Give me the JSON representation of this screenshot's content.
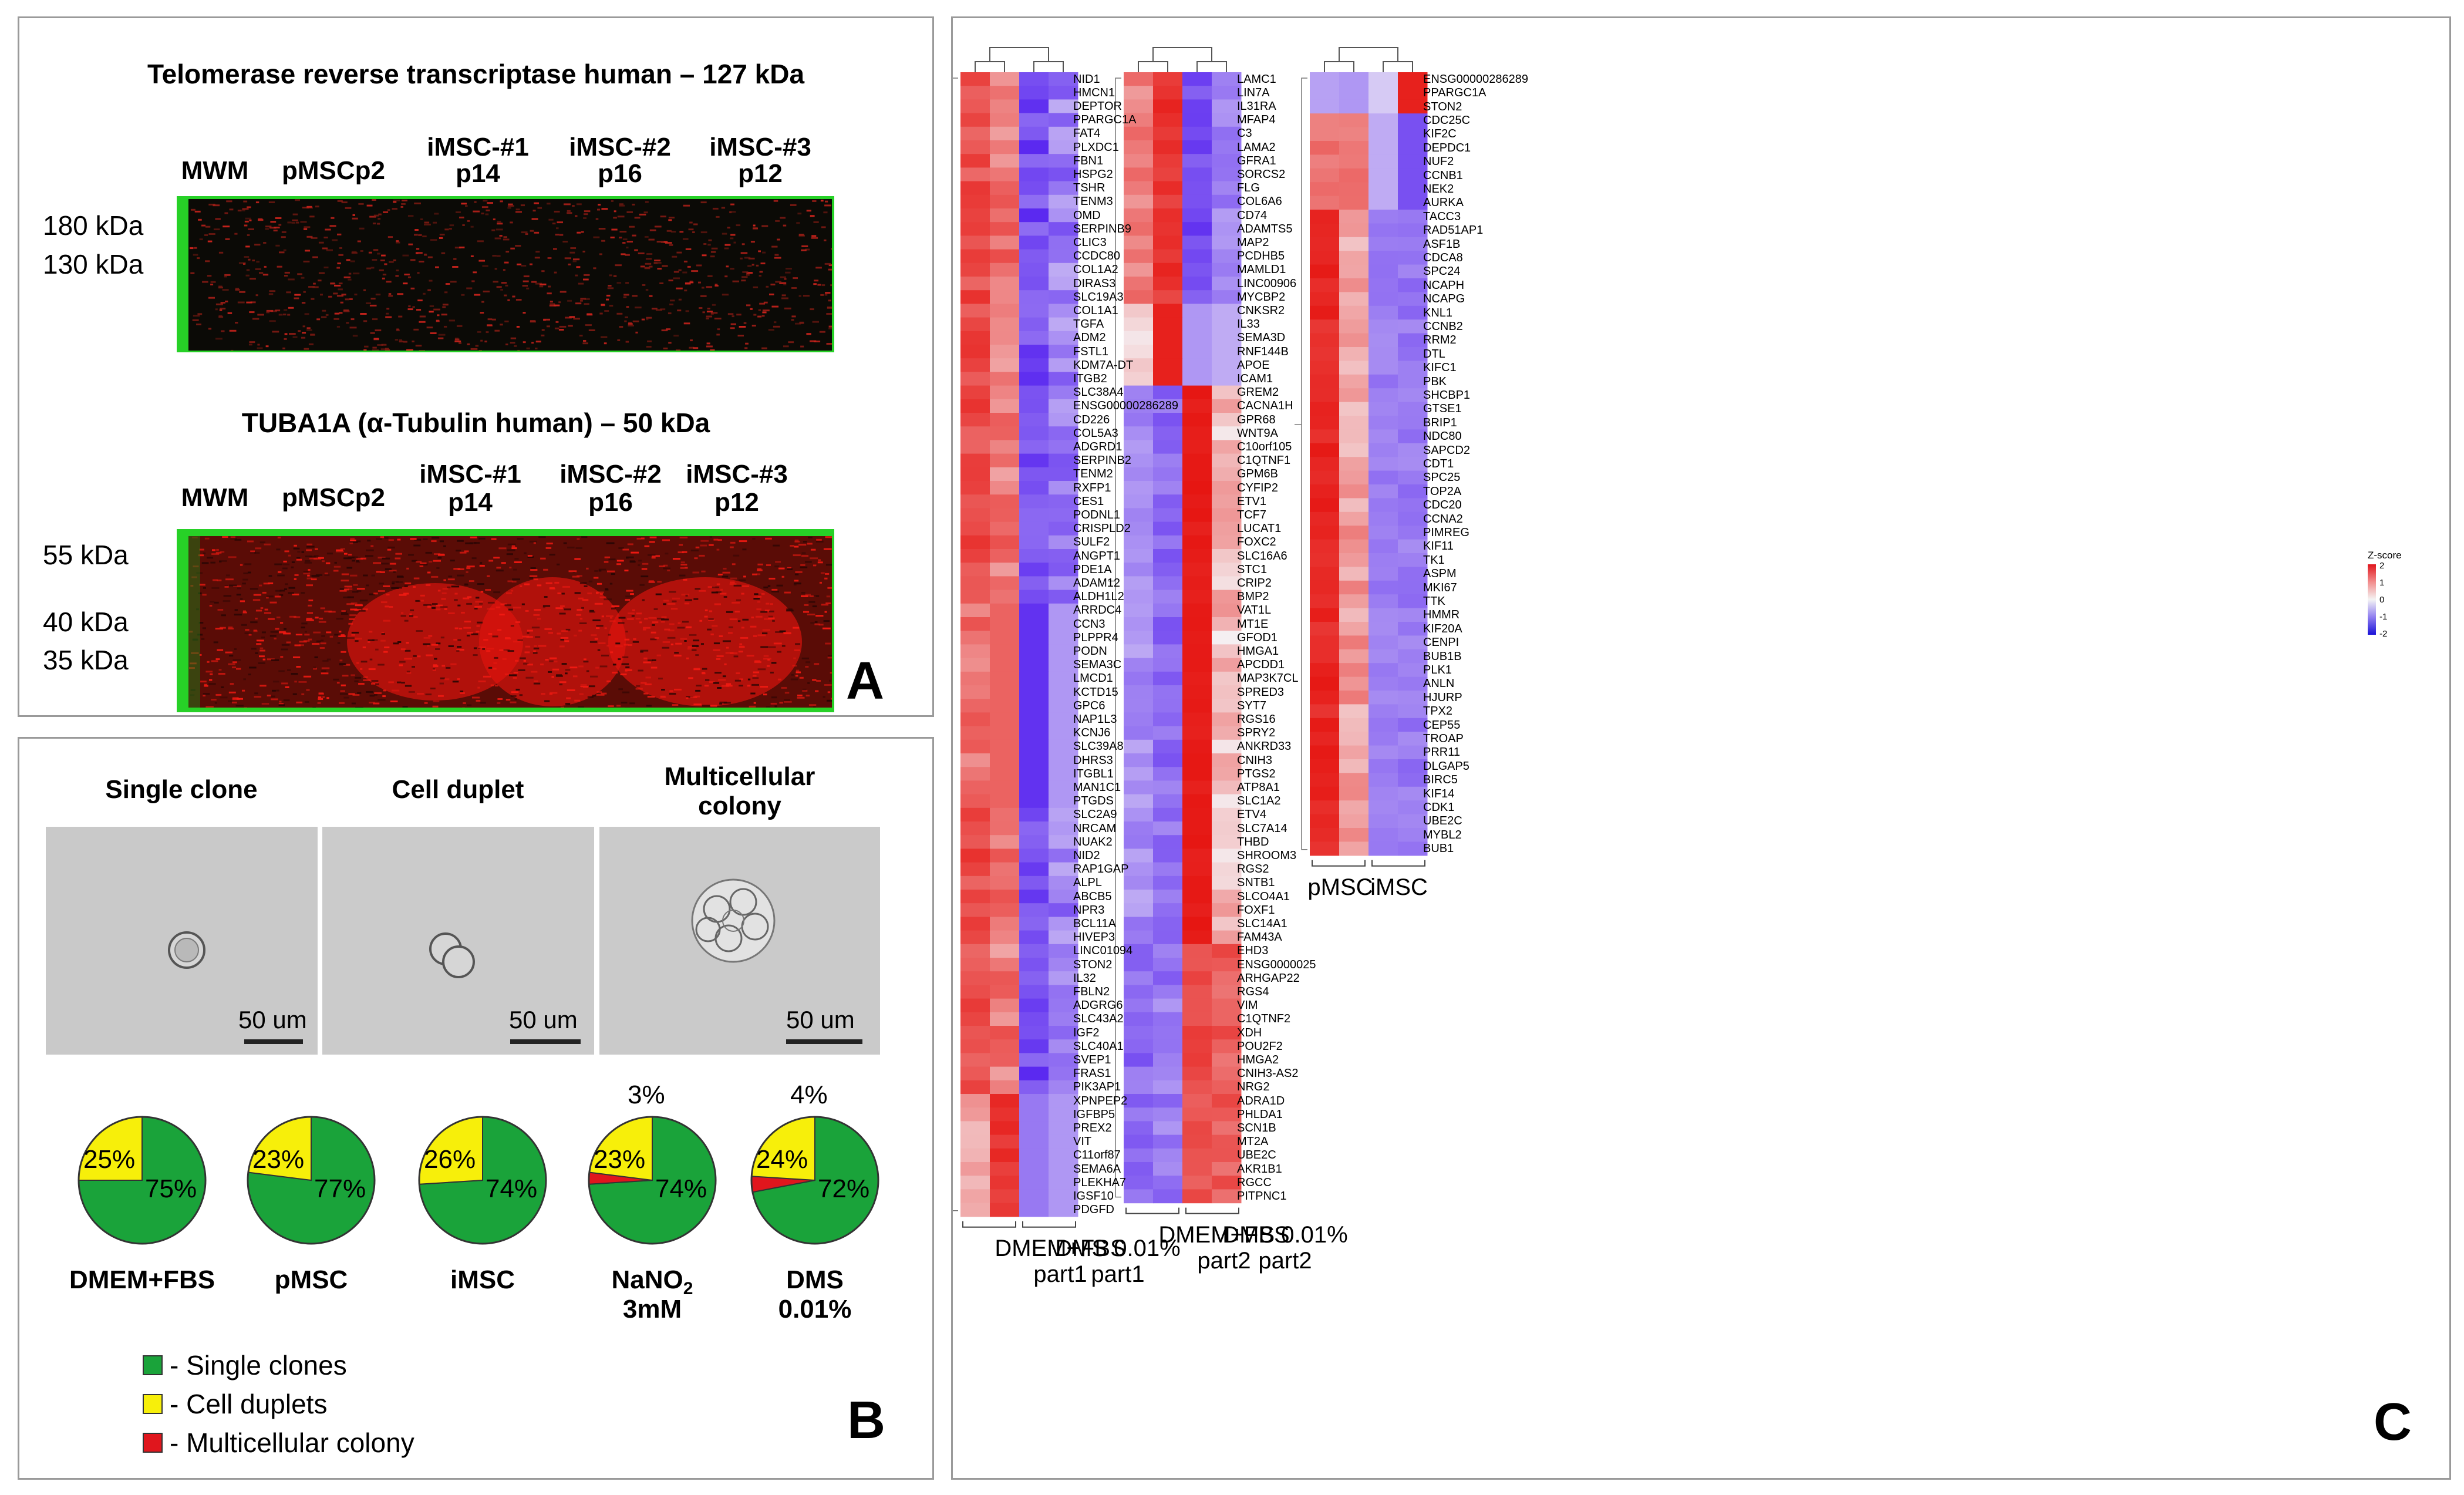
{
  "panel_a": {
    "letter": "A",
    "blot1": {
      "title": "Telomerase reverse transcriptase human – 127 kDa",
      "lanes": [
        {
          "name": "MWM",
          "passage": ""
        },
        {
          "name": "pMSCp2",
          "passage": ""
        },
        {
          "name": "iMSC-#1",
          "passage": "p14"
        },
        {
          "name": "iMSC-#2",
          "passage": "p16"
        },
        {
          "name": "iMSC-#3",
          "passage": "p12"
        }
      ],
      "markers": [
        "180 kDa",
        "130 kDa"
      ]
    },
    "blot2": {
      "title": "TUBA1A (α-Tubulin human) – 50 kDa",
      "lanes": [
        {
          "name": "MWM",
          "passage": ""
        },
        {
          "name": "pMSCp2",
          "passage": ""
        },
        {
          "name": "iMSC-#1",
          "passage": "p14"
        },
        {
          "name": "iMSC-#2",
          "passage": "p16"
        },
        {
          "name": "iMSC-#3",
          "passage": "p12"
        }
      ],
      "markers": [
        "55 kDa",
        "40 kDa",
        "35 kDa"
      ]
    }
  },
  "panel_b": {
    "letter": "B",
    "micrographs": [
      {
        "title": "Single clone",
        "scale": "50 um"
      },
      {
        "title": "Cell duplet",
        "scale": "50 um"
      },
      {
        "title": "Multicellular colony",
        "scale": "50 um"
      }
    ],
    "pies": [
      {
        "label": "DMEM+FBS",
        "sub": "",
        "single": 75,
        "duplet": 25,
        "multi": 0,
        "single_label": "75%",
        "duplet_label": "25%",
        "multi_label": ""
      },
      {
        "label": "pMSC",
        "sub": "",
        "single": 77,
        "duplet": 23,
        "multi": 0,
        "single_label": "77%",
        "duplet_label": "23%",
        "multi_label": ""
      },
      {
        "label": "iMSC",
        "sub": "",
        "single": 74,
        "duplet": 26,
        "multi": 0,
        "single_label": "74%",
        "duplet_label": "26%",
        "multi_label": ""
      },
      {
        "label": "NaNO",
        "sub": "2",
        "line2": "3mM",
        "single": 74,
        "duplet": 23,
        "multi": 3,
        "single_label": "74%",
        "duplet_label": "23%",
        "multi_label": "3%"
      },
      {
        "label": "DMS",
        "sub": "",
        "line2": "0.01%",
        "single": 72,
        "duplet": 24,
        "multi": 4,
        "single_label": "72%",
        "duplet_label": "24%",
        "multi_label": "4%"
      }
    ],
    "legend": [
      {
        "label": "- Single clones",
        "color": "#1aa33a"
      },
      {
        "label": "- Cell duplets",
        "color": "#f7ef0a"
      },
      {
        "label": "- Multicellular colony",
        "color": "#e0161d"
      }
    ]
  },
  "panel_c": {
    "letter": "C",
    "heatmap1": {
      "columns": [
        {
          "label1": "DMEM+FBS",
          "label2": "part1"
        },
        {
          "label1": "DMS 0.01%",
          "label2": "part1"
        }
      ],
      "genes": [
        "NID1",
        "HMCN1",
        "DEPTOR",
        "PPARGC1A",
        "FAT4",
        "PLXDC1",
        "FBN1",
        "HSPG2",
        "TSHR",
        "TENM3",
        "OMD",
        "SERPINB9",
        "CLIC3",
        "CCDC80",
        "COL1A2",
        "DIRAS3",
        "SLC19A3",
        "COL1A1",
        "TGFA",
        "ADM2",
        "FSTL1",
        "KDM7A-DT",
        "ITGB2",
        "SLC38A4",
        "ENSG00000286289",
        "CD226",
        "COL5A3",
        "ADGRD1",
        "SERPINB2",
        "TENM2",
        "RXFP1",
        "CES1",
        "PODNL1",
        "CRISPLD2",
        "SULF2",
        "ANGPT1",
        "PDE1A",
        "ADAM12",
        "ALDH1L2",
        "ARRDC4",
        "CCN3",
        "PLPPR4",
        "PODN",
        "SEMA3C",
        "LMCD1",
        "KCTD15",
        "GPC6",
        "NAP1L3",
        "KCNJ6",
        "SLC39A8",
        "DHRS3",
        "ITGBL1",
        "MAN1C1",
        "PTGDS",
        "SLC2A9",
        "NRCAM",
        "NUAK2",
        "NID2",
        "RAP1GAP",
        "ALPL",
        "ABCB5",
        "NPR3",
        "BCL11A",
        "HIVEP3",
        "LINC01094",
        "STON2",
        "IL32",
        "FBLN2",
        "ADGRG6",
        "SLC43A2",
        "IGF2",
        "SLC40A1",
        "SVEP1",
        "FRAS1",
        "PIK3AP1",
        "XPNPEP2",
        "IGFBP5",
        "PREX2",
        "VIT",
        "C11orf87",
        "SEMA6A",
        "PLEKHA7",
        "IGSF10",
        "PDGFD"
      ]
    },
    "heatmap2": {
      "columns": [
        {
          "label1": "DMEM+FBS",
          "label2": "part2"
        },
        {
          "label1": "DMS 0.01%",
          "label2": "part2"
        }
      ],
      "genes": [
        "LAMC1",
        "LIN7A",
        "IL31RA",
        "MFAP4",
        "C3",
        "LAMA2",
        "GFRA1",
        "SORCS2",
        "FLG",
        "COL6A6",
        "CD74",
        "ADAMTS5",
        "MAP2",
        "PCDHB5",
        "MAMLD1",
        "LINC00906",
        "MYCBP2",
        "CNKSR2",
        "IL33",
        "SEMA3D",
        "RNF144B",
        "APOE",
        "ICAM1",
        "GREM2",
        "CACNA1H",
        "GPR68",
        "WNT9A",
        "C10orf105",
        "C1QTNF1",
        "GPM6B",
        "CYFIP2",
        "ETV1",
        "TCF7",
        "LUCAT1",
        "FOXC2",
        "SLC16A6",
        "STC1",
        "CRIP2",
        "BMP2",
        "VAT1L",
        "MT1E",
        "GFOD1",
        "HMGA1",
        "APCDD1",
        "MAP3K7CL",
        "SPRED3",
        "SYT7",
        "RGS16",
        "SPRY2",
        "ANKRD33",
        "CNIH3",
        "PTGS2",
        "ATP8A1",
        "SLC1A2",
        "ETV4",
        "SLC7A14",
        "THBD",
        "SHROOM3",
        "RGS2",
        "SNTB1",
        "SLCO4A1",
        "FOXF1",
        "SLC14A1",
        "FAM43A",
        "EHD3",
        "ENSG0000025",
        "ARHGAP22",
        "RGS4",
        "VIM",
        "C1QTNF2",
        "XDH",
        "POU2F2",
        "HMGA2",
        "CNIH3-AS2",
        "NRG2",
        "ADRA1D",
        "PHLDA1",
        "SCN1B",
        "MT2A",
        "UBE2C",
        "AKR1B1",
        "RGCC",
        "PITPNC1"
      ]
    },
    "heatmap3": {
      "columns": [
        {
          "label1": "pMSC",
          "label2": ""
        },
        {
          "label1": "iMSC",
          "label2": ""
        }
      ],
      "genes": [
        "ENSG00000286289",
        "PPARGC1A",
        "STON2",
        "CDC25C",
        "KIF2C",
        "DEPDC1",
        "NUF2",
        "CCNB1",
        "NEK2",
        "AURKA",
        "TACC3",
        "RAD51AP1",
        "ASF1B",
        "CDCA8",
        "SPC24",
        "NCAPH",
        "NCAPG",
        "KNL1",
        "CCNB2",
        "RRM2",
        "DTL",
        "KIFC1",
        "PBK",
        "SHCBP1",
        "GTSE1",
        "BRIP1",
        "NDC80",
        "SAPCD2",
        "CDT1",
        "SPC25",
        "TOP2A",
        "CDC20",
        "CCNA2",
        "PIMREG",
        "KIF11",
        "TK1",
        "ASPM",
        "MKI67",
        "TTK",
        "HMMR",
        "KIF20A",
        "CENPI",
        "BUB1B",
        "PLK1",
        "ANLN",
        "HJURP",
        "TPX2",
        "CEP55",
        "TROAP",
        "PRR11",
        "DLGAP5",
        "BIRC5",
        "KIF14",
        "CDK1",
        "UBE2C",
        "MYBL2",
        "BUB1"
      ]
    },
    "zscore_legend": {
      "title": "Z-score",
      "ticks": [
        "2",
        "1",
        "0",
        "-1",
        "-2"
      ]
    }
  }
}
